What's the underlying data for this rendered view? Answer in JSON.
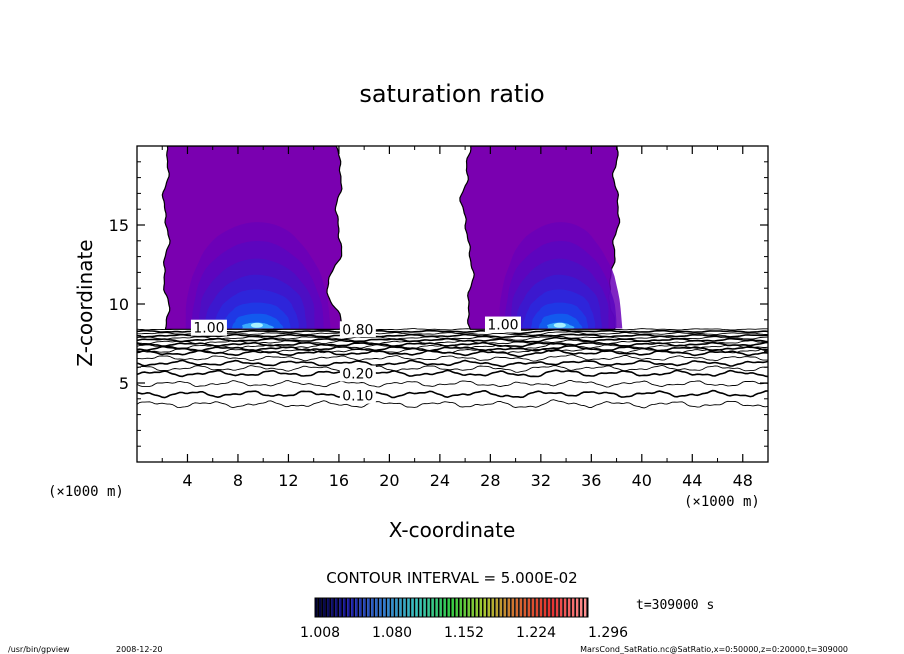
{
  "chart_data": {
    "type": "contour",
    "title": "saturation ratio",
    "xlabel": "X-coordinate",
    "ylabel": "Z-coordinate",
    "x_unit_label": "(×1000 m)",
    "z_unit_label": "(×1000 m)",
    "xlim": [
      0,
      50
    ],
    "zlim": [
      0,
      20
    ],
    "x_ticks": [
      4,
      8,
      12,
      16,
      20,
      24,
      28,
      32,
      36,
      40,
      44,
      48
    ],
    "z_ticks": [
      5,
      10,
      15
    ],
    "grid": false,
    "contour_interval_text": "CONTOUR INTERVAL = 5.000E-02",
    "time_text": "t=309000 s",
    "colorbar": {
      "min": 1.008,
      "max": 1.3,
      "tick_values": [
        1.008,
        1.08,
        1.152,
        1.224,
        1.296
      ],
      "tick_labels": [
        "1.008",
        "1.080",
        "1.152",
        "1.224",
        "1.296"
      ],
      "colors": [
        "#000033",
        "#1a1aa8",
        "#2a7ad8",
        "#30c8c0",
        "#2fcf40",
        "#a8c830",
        "#d86830",
        "#e83030",
        "#ff9090"
      ]
    },
    "contour_labels": [
      {
        "text": "1.00",
        "x": 5.7,
        "z": 8.5
      },
      {
        "text": "1.00",
        "x": 29.0,
        "z": 8.7
      },
      {
        "text": "0.80",
        "x": 17.5,
        "z": 8.4
      },
      {
        "text": "0.20",
        "x": 17.5,
        "z": 5.6
      },
      {
        "text": "0.10",
        "x": 17.5,
        "z": 4.2
      }
    ],
    "supersaturated_regions": [
      {
        "x_range": [
          2.3,
          16.0
        ],
        "z_range": [
          8.4,
          20
        ],
        "peak_x": 9.5,
        "peak_z": 8.7,
        "peak_value": 1.07
      },
      {
        "x_range": [
          26.4,
          38.0
        ],
        "z_range": [
          8.4,
          20
        ],
        "peak_x": 33.5,
        "peak_z": 8.7,
        "peak_value": 1.07
      }
    ]
  },
  "footer": {
    "program": "/usr/bin/gpview",
    "date": "2008-12-20",
    "source": "MarsCond_SatRatio.nc@SatRatio,x=0:50000,z=0:20000,t=309000"
  }
}
